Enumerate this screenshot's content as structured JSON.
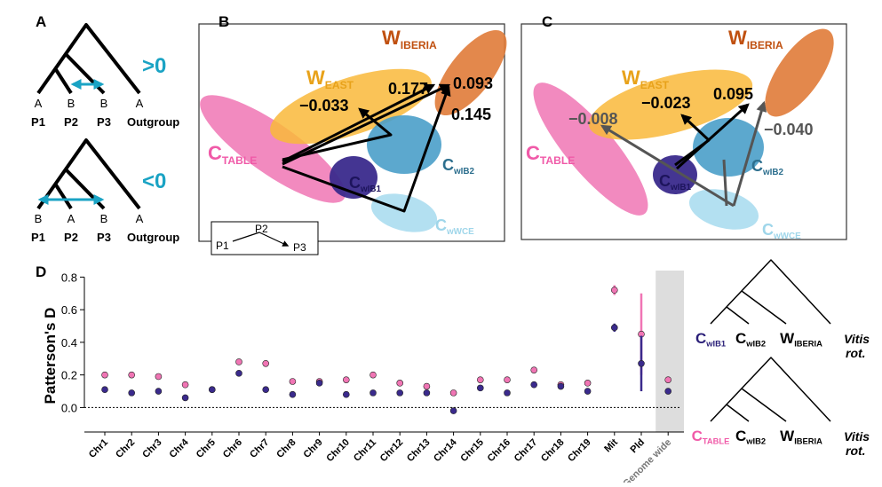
{
  "panel_labels": [
    "A",
    "B",
    "C",
    "D"
  ],
  "panel_a": {
    "taxa": [
      "P1",
      "P2",
      "P3",
      "Outgroup"
    ],
    "trees": [
      {
        "alleles": [
          "A",
          "B",
          "B",
          "A"
        ],
        "sign": ">0"
      },
      {
        "alleles": [
          "B",
          "A",
          "B",
          "A"
        ],
        "sign": "<0"
      }
    ]
  },
  "groups": [
    {
      "main": "W",
      "sub": "EAST"
    },
    {
      "main": "W",
      "sub": "IBERIA"
    },
    {
      "main": "C",
      "sub": "TABLE"
    },
    {
      "main": "C",
      "sub": "wIB1"
    },
    {
      "main": "C",
      "sub": "wIB2"
    },
    {
      "main": "C",
      "sub": "wWCE"
    }
  ],
  "panel_b": {
    "values": [
      "−0.033",
      "0.177",
      "0.093",
      "0.145"
    ],
    "legend": [
      "P1",
      "P2",
      "P3"
    ]
  },
  "panel_c": {
    "values": [
      "−0.008",
      "−0.023",
      "0.095",
      "−0.040"
    ]
  },
  "trees": {
    "outgroup": [
      "Vitis",
      "rot."
    ]
  },
  "chart_data": {
    "type": "dot",
    "ylabel": "Patterson's D",
    "categories": [
      "Chr1",
      "Chr2",
      "Chr3",
      "Chr4",
      "Chr5",
      "Chr6",
      "Chr7",
      "Chr8",
      "Chr9",
      "Chr10",
      "Chr11",
      "Chr12",
      "Chr13",
      "Chr14",
      "Chr15",
      "Chr16",
      "Chr17",
      "Chr18",
      "Chr19",
      "Mit",
      "Pld",
      "Genome wide"
    ],
    "series": [
      {
        "color": "#f075b4",
        "values": [
          0.2,
          0.2,
          0.19,
          0.14,
          0.11,
          0.28,
          0.27,
          0.16,
          0.16,
          0.17,
          0.2,
          0.15,
          0.13,
          0.09,
          0.17,
          0.17,
          0.23,
          0.14,
          0.15,
          0.72,
          0.45,
          0.17
        ],
        "errors": [
          0,
          0,
          0,
          0,
          0,
          0,
          0,
          0,
          0,
          0,
          0,
          0,
          0,
          0,
          0,
          0,
          0,
          0,
          0,
          0.03,
          0.25,
          0
        ]
      },
      {
        "color": "#3a2a8c",
        "values": [
          0.11,
          0.09,
          0.1,
          0.06,
          0.11,
          0.21,
          0.11,
          0.08,
          0.15,
          0.08,
          0.09,
          0.09,
          0.09,
          -0.02,
          0.12,
          0.09,
          0.14,
          0.13,
          0.1,
          0.49,
          0.27,
          0.1
        ],
        "errors": [
          0,
          0,
          0,
          0,
          0,
          0,
          0,
          0,
          0,
          0,
          0,
          0,
          0,
          0,
          0,
          0,
          0,
          0,
          0,
          0.025,
          0.17,
          0
        ]
      }
    ],
    "ylim": [
      -0.15,
      0.84
    ],
    "yticks": [
      {
        "value": 0,
        "label": "0.0"
      },
      0.2,
      0.4,
      0.6,
      0.8
    ]
  }
}
